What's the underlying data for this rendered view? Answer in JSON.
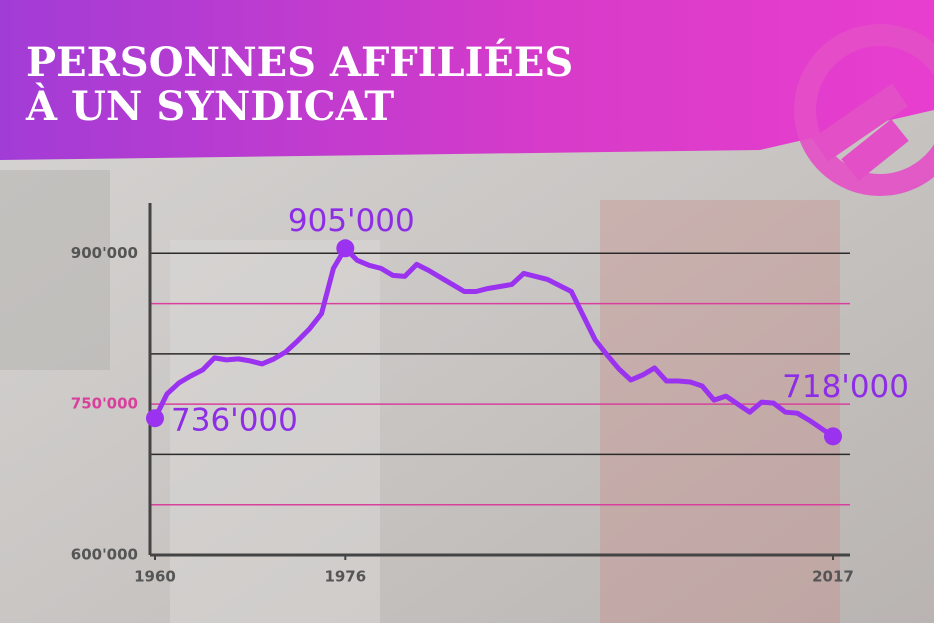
{
  "chart_data": {
    "type": "line",
    "title_lines": [
      "PERSONNES AFFILIÉES",
      "À UN SYNDICAT"
    ],
    "x": [
      1960,
      1961,
      1962,
      1963,
      1964,
      1965,
      1966,
      1967,
      1968,
      1969,
      1970,
      1971,
      1972,
      1973,
      1974,
      1975,
      1976,
      1977,
      1978,
      1979,
      1980,
      1981,
      1982,
      1983,
      1984,
      1985,
      1986,
      1987,
      1988,
      1989,
      1990,
      1991,
      1992,
      1993,
      1994,
      1995,
      1996,
      1997,
      1998,
      1999,
      2000,
      2001,
      2002,
      2003,
      2004,
      2005,
      2006,
      2007,
      2008,
      2009,
      2010,
      2011,
      2012,
      2013,
      2014,
      2015,
      2016,
      2017
    ],
    "series": [
      {
        "color": "#9a32f0",
        "values": [
          736000,
          760000,
          771000,
          778000,
          784000,
          796000,
          794000,
          795000,
          793000,
          790000,
          795000,
          802000,
          813000,
          825000,
          840000,
          885000,
          905000,
          893000,
          888000,
          885000,
          878000,
          877000,
          889000,
          883000,
          876000,
          869000,
          862000,
          862000,
          865000,
          867000,
          869000,
          880000,
          877000,
          874000,
          868000,
          862000,
          838000,
          814000,
          799000,
          785000,
          774000,
          779000,
          786000,
          773000,
          773000,
          772000,
          768000,
          754000,
          758000,
          750000,
          742000,
          752000,
          751000,
          742000,
          741000,
          734000,
          726000,
          718000
        ],
        "value_labels": [
          "736'000",
          null,
          null,
          null,
          null,
          null,
          null,
          null,
          null,
          null,
          null,
          null,
          null,
          null,
          null,
          null,
          "905'000",
          null,
          null,
          null,
          null,
          null,
          null,
          null,
          null,
          null,
          null,
          null,
          null,
          null,
          null,
          null,
          null,
          null,
          null,
          null,
          null,
          null,
          null,
          null,
          null,
          null,
          null,
          null,
          null,
          null,
          null,
          null,
          null,
          null,
          null,
          null,
          null,
          null,
          null,
          null,
          null,
          "718'000"
        ]
      }
    ],
    "xlim": [
      1960,
      2017
    ],
    "xticks": [
      1960,
      1976,
      2017
    ],
    "ylim": [
      600000,
      950000
    ],
    "yticks": [
      {
        "value": 600000,
        "label": "600'000"
      },
      {
        "value": 650000,
        "label": null
      },
      {
        "value": 700000,
        "label": null
      },
      {
        "value": 750000,
        "label": "750'000"
      },
      {
        "value": 800000,
        "label": null
      },
      {
        "value": 850000,
        "label": null
      },
      {
        "value": 900000,
        "label": "900'000"
      }
    ],
    "grid": true,
    "grid_colors": [
      "#2a2a2a",
      "#d9409c"
    ]
  }
}
